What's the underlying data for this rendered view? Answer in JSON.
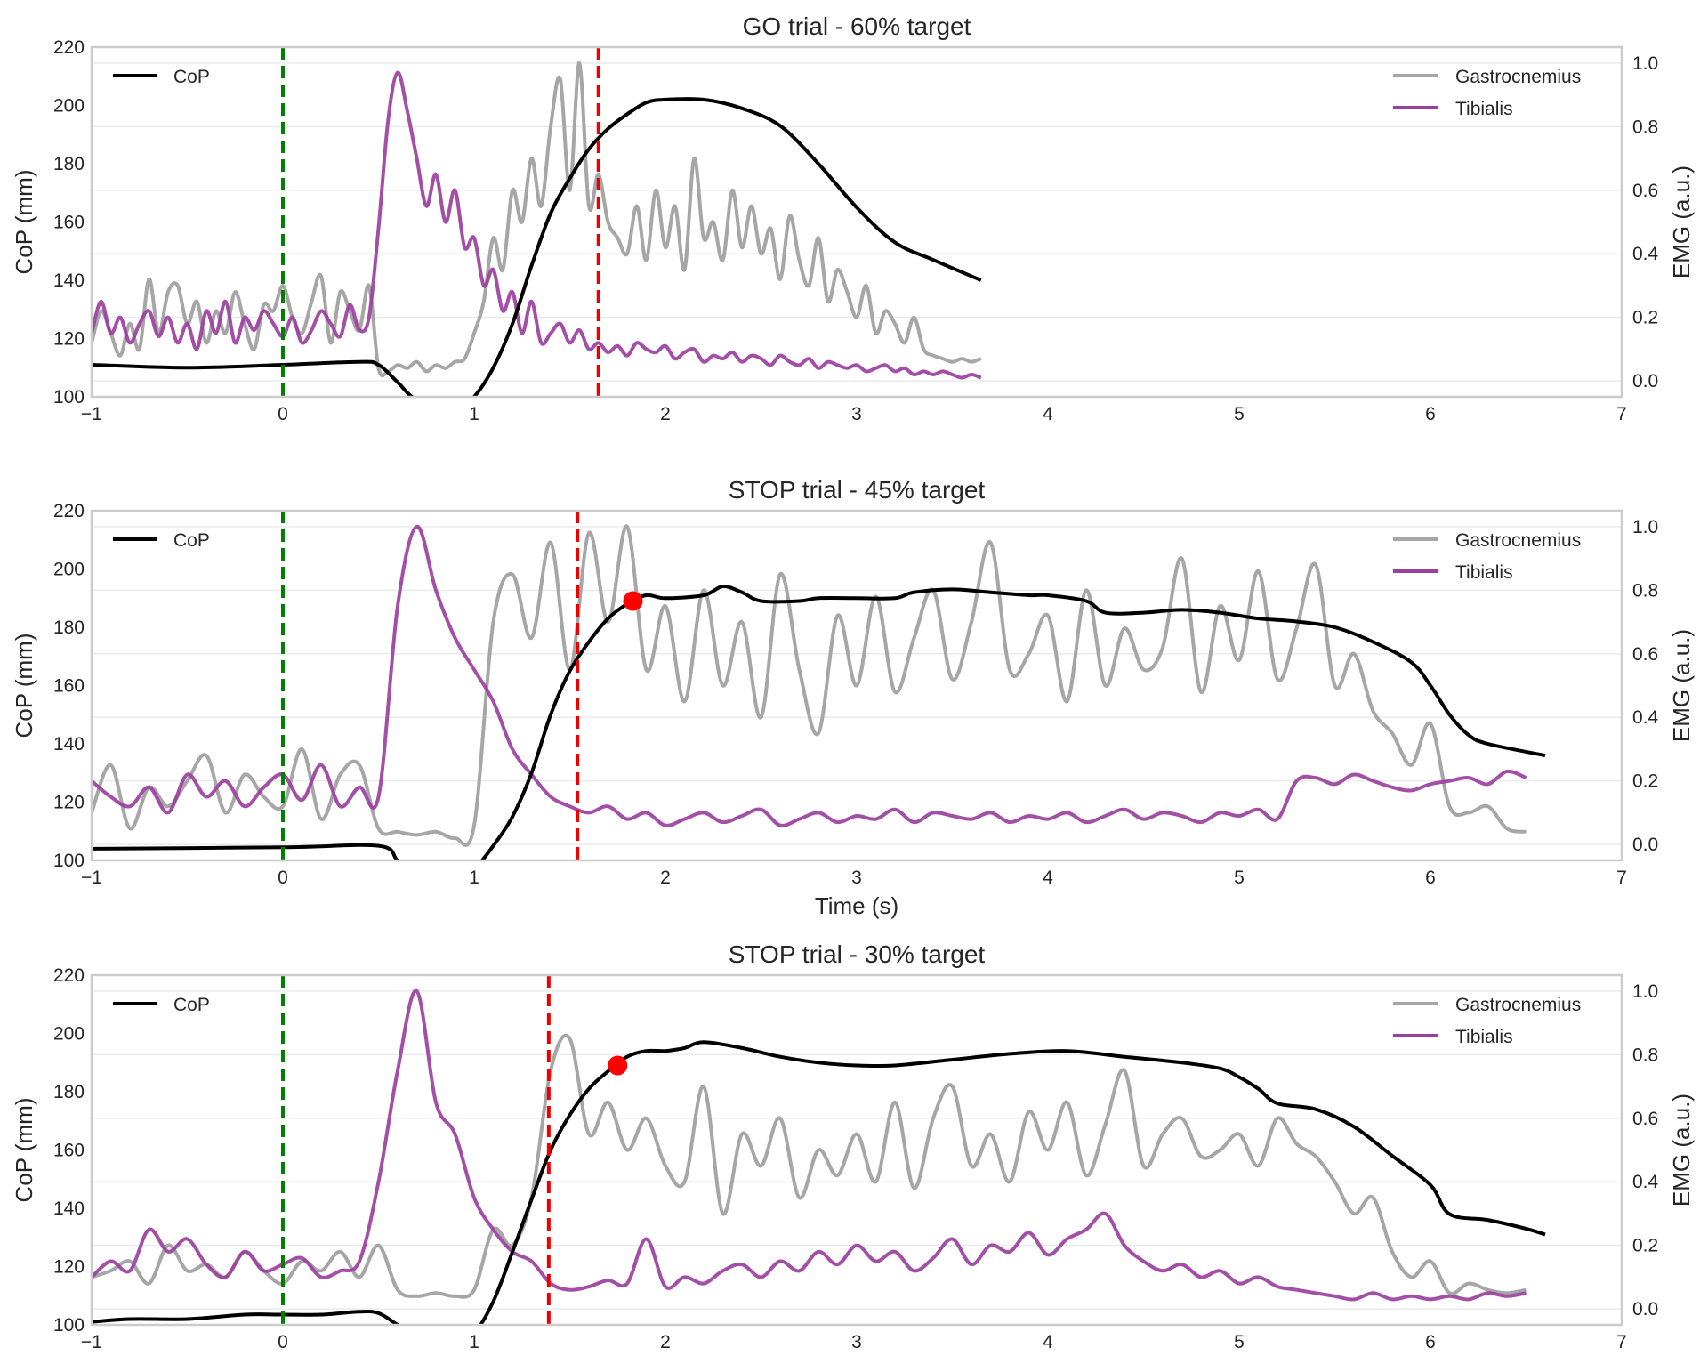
{
  "chart_data": [
    {
      "type": "line",
      "title": "GO trial - 60% target",
      "xlabel": "",
      "ylabel": "CoP (mm)",
      "ylabel_right": "EMG (a.u.)",
      "xlim": [
        -1,
        7
      ],
      "ylim": [
        100,
        220
      ],
      "ylim_right": [
        -0.05,
        1.05
      ],
      "xticks": [
        "−1",
        "0",
        "1",
        "2",
        "3",
        "4",
        "5",
        "6",
        "7"
      ],
      "yticks": [
        "100",
        "120",
        "140",
        "160",
        "180",
        "200",
        "220"
      ],
      "yticks_right": [
        "0.0",
        "0.2",
        "0.4",
        "0.6",
        "0.8",
        "1.0"
      ],
      "grid": true,
      "legend_left": {
        "placement": "top-left",
        "entries": [
          "CoP"
        ]
      },
      "legend_right": {
        "placement": "top-right",
        "entries": [
          "Gastrocnemius",
          "Tibialis"
        ]
      },
      "vlines": [
        {
          "x": 0,
          "color": "#008000",
          "style": "dashed"
        },
        {
          "x": 1.65,
          "color": "#ee0000",
          "style": "dashed"
        }
      ],
      "marker": null,
      "cop": {
        "x": [
          -1,
          -0.5,
          0,
          0.4,
          0.5,
          0.6,
          0.7,
          0.9,
          1.0,
          1.1,
          1.2,
          1.3,
          1.4,
          1.5,
          1.6,
          1.7,
          1.8,
          1.9,
          2.0,
          2.2,
          2.4,
          2.6,
          2.8,
          3.0,
          3.2,
          3.4,
          3.65
        ],
        "y": [
          111,
          110,
          111,
          112,
          111,
          105,
          99,
          95,
          100,
          110,
          125,
          145,
          163,
          175,
          185,
          192,
          197,
          201,
          202,
          202,
          199,
          193,
          180,
          165,
          153,
          147,
          140
        ]
      },
      "emg_start": -1,
      "emg_dt": 0.05,
      "gastrocnemius": [
        0.12,
        0.22,
        0.15,
        0.08,
        0.18,
        0.1,
        0.32,
        0.15,
        0.28,
        0.3,
        0.18,
        0.25,
        0.12,
        0.22,
        0.15,
        0.28,
        0.18,
        0.1,
        0.24,
        0.22,
        0.3,
        0.2,
        0.15,
        0.25,
        0.33,
        0.12,
        0.28,
        0.22,
        0.16,
        0.3,
        0.04,
        0.03,
        0.05,
        0.04,
        0.06,
        0.03,
        0.05,
        0.04,
        0.06,
        0.07,
        0.15,
        0.25,
        0.45,
        0.35,
        0.6,
        0.5,
        0.7,
        0.55,
        0.8,
        0.95,
        0.6,
        1.0,
        0.55,
        0.65,
        0.5,
        0.45,
        0.4,
        0.55,
        0.38,
        0.6,
        0.42,
        0.55,
        0.35,
        0.7,
        0.45,
        0.5,
        0.38,
        0.6,
        0.42,
        0.55,
        0.4,
        0.48,
        0.32,
        0.52,
        0.38,
        0.3,
        0.45,
        0.25,
        0.35,
        0.28,
        0.2,
        0.3,
        0.15,
        0.22,
        0.18,
        0.12,
        0.2,
        0.1,
        0.08,
        0.07,
        0.06,
        0.07,
        0.06,
        0.07
      ],
      "tibialis": [
        0.15,
        0.25,
        0.15,
        0.2,
        0.12,
        0.18,
        0.22,
        0.14,
        0.2,
        0.12,
        0.18,
        0.1,
        0.22,
        0.15,
        0.25,
        0.12,
        0.2,
        0.16,
        0.22,
        0.18,
        0.14,
        0.2,
        0.12,
        0.16,
        0.22,
        0.18,
        0.14,
        0.24,
        0.16,
        0.2,
        0.48,
        0.82,
        0.97,
        0.85,
        0.7,
        0.55,
        0.65,
        0.5,
        0.6,
        0.42,
        0.45,
        0.3,
        0.35,
        0.22,
        0.28,
        0.15,
        0.25,
        0.12,
        0.15,
        0.18,
        0.12,
        0.16,
        0.1,
        0.12,
        0.09,
        0.11,
        0.08,
        0.12,
        0.1,
        0.09,
        0.11,
        0.07,
        0.09,
        0.1,
        0.06,
        0.08,
        0.07,
        0.09,
        0.06,
        0.08,
        0.07,
        0.05,
        0.08,
        0.06,
        0.05,
        0.07,
        0.04,
        0.06,
        0.05,
        0.04,
        0.05,
        0.03,
        0.04,
        0.05,
        0.03,
        0.04,
        0.02,
        0.03,
        0.02,
        0.03,
        0.02,
        0.01,
        0.02,
        0.01
      ]
    },
    {
      "type": "line",
      "title": "STOP trial - 45% target",
      "xlabel": "Time (s)",
      "ylabel": "CoP (mm)",
      "ylabel_right": "EMG (a.u.)",
      "xlim": [
        -1,
        7
      ],
      "ylim": [
        100,
        220
      ],
      "ylim_right": [
        -0.05,
        1.05
      ],
      "xticks": [
        "−1",
        "0",
        "1",
        "2",
        "3",
        "4",
        "5",
        "6",
        "7"
      ],
      "yticks": [
        "100",
        "120",
        "140",
        "160",
        "180",
        "200",
        "220"
      ],
      "yticks_right": [
        "0.0",
        "0.2",
        "0.4",
        "0.6",
        "0.8",
        "1.0"
      ],
      "grid": true,
      "legend_left": {
        "placement": "top-left",
        "entries": [
          "CoP"
        ]
      },
      "legend_right": {
        "placement": "top-right",
        "entries": [
          "Gastrocnemius",
          "Tibialis"
        ]
      },
      "vlines": [
        {
          "x": 0,
          "color": "#008000",
          "style": "dashed"
        },
        {
          "x": 1.54,
          "color": "#ee0000",
          "style": "dashed"
        }
      ],
      "marker": {
        "x": 1.83,
        "y": 189,
        "color": "#ff0000"
      },
      "cop": {
        "x": [
          -1,
          0,
          0.5,
          0.6,
          0.7,
          0.9,
          1.0,
          1.1,
          1.2,
          1.3,
          1.4,
          1.5,
          1.6,
          1.7,
          1.8,
          1.9,
          2.0,
          2.2,
          2.3,
          2.4,
          2.5,
          2.7,
          2.8,
          3.0,
          3.2,
          3.3,
          3.5,
          3.7,
          3.9,
          4.0,
          4.2,
          4.3,
          4.5,
          4.7,
          4.9,
          5.1,
          5.3,
          5.5,
          5.7,
          5.9,
          6.0,
          6.1,
          6.2,
          6.3,
          6.6
        ],
        "y": [
          104,
          104.5,
          105,
          100,
          96,
          93,
          97,
          105,
          115,
          130,
          150,
          165,
          175,
          183,
          188,
          191,
          190,
          191,
          194,
          192,
          189,
          189,
          190,
          190,
          190,
          192,
          193,
          192,
          191,
          191,
          189,
          185,
          185,
          186,
          185,
          183,
          182,
          180,
          175,
          168,
          160,
          150,
          143,
          140,
          136
        ]
      },
      "emg_start": -1,
      "emg_dt": 0.1,
      "gastrocnemius": [
        0.1,
        0.25,
        0.05,
        0.18,
        0.12,
        0.2,
        0.28,
        0.1,
        0.22,
        0.15,
        0.12,
        0.3,
        0.08,
        0.22,
        0.25,
        0.05,
        0.04,
        0.03,
        0.04,
        0.02,
        0.06,
        0.7,
        0.85,
        0.65,
        0.95,
        0.55,
        0.98,
        0.7,
        1.0,
        0.55,
        0.75,
        0.45,
        0.8,
        0.5,
        0.7,
        0.4,
        0.85,
        0.55,
        0.35,
        0.72,
        0.5,
        0.78,
        0.48,
        0.65,
        0.8,
        0.52,
        0.7,
        0.95,
        0.55,
        0.6,
        0.72,
        0.45,
        0.8,
        0.5,
        0.68,
        0.55,
        0.62,
        0.9,
        0.48,
        0.75,
        0.58,
        0.86,
        0.52,
        0.68,
        0.88,
        0.5,
        0.6,
        0.42,
        0.35,
        0.25,
        0.38,
        0.12,
        0.1,
        0.12,
        0.05,
        0.04
      ],
      "tibialis": [
        0.2,
        0.15,
        0.12,
        0.18,
        0.1,
        0.22,
        0.15,
        0.2,
        0.12,
        0.18,
        0.22,
        0.14,
        0.25,
        0.12,
        0.18,
        0.15,
        0.75,
        1.0,
        0.8,
        0.65,
        0.55,
        0.45,
        0.3,
        0.22,
        0.15,
        0.12,
        0.1,
        0.12,
        0.08,
        0.1,
        0.06,
        0.08,
        0.1,
        0.07,
        0.09,
        0.11,
        0.06,
        0.08,
        0.1,
        0.07,
        0.09,
        0.08,
        0.11,
        0.07,
        0.1,
        0.09,
        0.08,
        0.1,
        0.07,
        0.09,
        0.08,
        0.1,
        0.07,
        0.09,
        0.11,
        0.08,
        0.1,
        0.09,
        0.07,
        0.1,
        0.09,
        0.11,
        0.08,
        0.2,
        0.21,
        0.19,
        0.22,
        0.2,
        0.18,
        0.17,
        0.19,
        0.2,
        0.21,
        0.19,
        0.23,
        0.21
      ]
    },
    {
      "type": "line",
      "title": "STOP trial - 30% target",
      "xlabel": "",
      "ylabel": "CoP (mm)",
      "ylabel_right": "EMG (a.u.)",
      "xlim": [
        -1,
        7
      ],
      "ylim": [
        100,
        220
      ],
      "ylim_right": [
        -0.05,
        1.05
      ],
      "xticks": [
        "−1",
        "0",
        "1",
        "2",
        "3",
        "4",
        "5",
        "6",
        "7"
      ],
      "yticks": [
        "100",
        "120",
        "140",
        "160",
        "180",
        "200",
        "220"
      ],
      "yticks_right": [
        "0.0",
        "0.2",
        "0.4",
        "0.6",
        "0.8",
        "1.0"
      ],
      "grid": true,
      "legend_left": {
        "placement": "top-left",
        "entries": [
          "CoP"
        ]
      },
      "legend_right": {
        "placement": "top-right",
        "entries": [
          "Gastrocnemius",
          "Tibialis"
        ]
      },
      "vlines": [
        {
          "x": 0,
          "color": "#008000",
          "style": "dashed"
        },
        {
          "x": 1.39,
          "color": "#ee0000",
          "style": "dashed"
        }
      ],
      "marker": {
        "x": 1.75,
        "y": 189,
        "color": "#ff0000"
      },
      "cop": {
        "x": [
          -1,
          -0.8,
          -0.5,
          -0.2,
          0,
          0.2,
          0.4,
          0.5,
          0.6,
          0.7,
          0.9,
          1.0,
          1.1,
          1.2,
          1.3,
          1.4,
          1.5,
          1.6,
          1.7,
          1.8,
          1.9,
          2.0,
          2.1,
          2.2,
          2.4,
          2.6,
          2.8,
          3.0,
          3.2,
          3.5,
          3.8,
          4.1,
          4.4,
          4.7,
          4.9,
          5.0,
          5.1,
          5.2,
          5.4,
          5.6,
          5.8,
          6.0,
          6.1,
          6.3,
          6.5,
          6.6
        ],
        "y": [
          101,
          102,
          102,
          103.5,
          103.5,
          103.5,
          104.5,
          104,
          100,
          96,
          93,
          97,
          108,
          125,
          143,
          160,
          172,
          181,
          187,
          192,
          194,
          194,
          195,
          197,
          195,
          192,
          190,
          189,
          189,
          191,
          193,
          194,
          192,
          190,
          188,
          185,
          181,
          176,
          174,
          168,
          158,
          148,
          138,
          136,
          133,
          131
        ]
      },
      "emg_start": -1,
      "emg_dt": 0.1,
      "gastrocnemius": [
        0.1,
        0.12,
        0.15,
        0.08,
        0.2,
        0.12,
        0.14,
        0.1,
        0.18,
        0.12,
        0.08,
        0.15,
        0.12,
        0.18,
        0.1,
        0.2,
        0.06,
        0.04,
        0.05,
        0.04,
        0.06,
        0.25,
        0.2,
        0.35,
        0.75,
        0.85,
        0.55,
        0.65,
        0.5,
        0.6,
        0.45,
        0.4,
        0.7,
        0.3,
        0.55,
        0.45,
        0.6,
        0.35,
        0.5,
        0.42,
        0.55,
        0.4,
        0.65,
        0.38,
        0.6,
        0.7,
        0.45,
        0.55,
        0.4,
        0.62,
        0.5,
        0.65,
        0.42,
        0.58,
        0.75,
        0.45,
        0.55,
        0.6,
        0.48,
        0.5,
        0.55,
        0.45,
        0.6,
        0.52,
        0.48,
        0.4,
        0.3,
        0.35,
        0.18,
        0.1,
        0.15,
        0.05,
        0.08,
        0.06,
        0.05,
        0.06
      ],
      "tibialis": [
        0.1,
        0.15,
        0.12,
        0.25,
        0.18,
        0.22,
        0.14,
        0.1,
        0.18,
        0.12,
        0.14,
        0.16,
        0.1,
        0.12,
        0.15,
        0.4,
        0.75,
        1.0,
        0.65,
        0.55,
        0.35,
        0.25,
        0.18,
        0.15,
        0.08,
        0.06,
        0.07,
        0.09,
        0.08,
        0.22,
        0.07,
        0.1,
        0.08,
        0.12,
        0.14,
        0.1,
        0.15,
        0.12,
        0.18,
        0.14,
        0.2,
        0.15,
        0.18,
        0.12,
        0.16,
        0.22,
        0.14,
        0.2,
        0.18,
        0.24,
        0.17,
        0.22,
        0.25,
        0.3,
        0.2,
        0.15,
        0.12,
        0.14,
        0.1,
        0.12,
        0.08,
        0.1,
        0.07,
        0.06,
        0.05,
        0.04,
        0.03,
        0.05,
        0.03,
        0.04,
        0.03,
        0.04,
        0.03,
        0.05,
        0.04,
        0.05
      ]
    }
  ],
  "colors": {
    "cop": "#000000",
    "gastrocnemius": "#a6a6a6",
    "tibialis": "#9b3fa0",
    "go_line": "#008000",
    "stop_line": "#ee0000",
    "marker": "#ff0000"
  }
}
